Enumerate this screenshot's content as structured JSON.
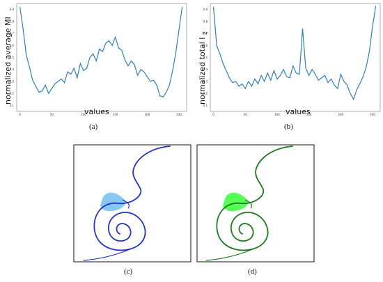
{
  "chart_data": [
    {
      "type": "line",
      "panel": "(a)",
      "xlabel": "values",
      "ylabel": "normalized average MI",
      "title": "",
      "xlim": [
        -5,
        262
      ],
      "ylim": [
        0.05,
        0.95
      ],
      "xticks": [
        0,
        50,
        100,
        150,
        200,
        250
      ],
      "yticks": [
        0.1,
        0.2,
        0.3,
        0.4,
        0.5,
        0.6,
        0.7,
        0.8,
        0.9
      ],
      "line_color": "#2f7fbf",
      "grid": false,
      "series": [
        {
          "x": [
            0,
            5,
            10,
            15,
            20,
            25,
            30,
            35,
            40,
            45,
            50,
            55,
            60,
            65,
            70,
            75,
            80,
            85,
            90,
            95,
            100,
            105,
            110,
            115,
            120,
            125,
            130,
            135,
            140,
            145,
            150,
            155,
            160,
            165,
            170,
            175,
            180,
            185,
            190,
            195,
            200,
            205,
            210,
            215,
            220,
            225,
            230,
            235,
            240,
            245,
            250,
            255
          ],
          "values": [
            0.92,
            0.74,
            0.52,
            0.42,
            0.31,
            0.26,
            0.21,
            0.22,
            0.27,
            0.2,
            0.24,
            0.28,
            0.3,
            0.32,
            0.29,
            0.38,
            0.36,
            0.41,
            0.33,
            0.45,
            0.39,
            0.41,
            0.5,
            0.53,
            0.47,
            0.57,
            0.55,
            0.62,
            0.64,
            0.6,
            0.67,
            0.58,
            0.56,
            0.48,
            0.43,
            0.47,
            0.44,
            0.35,
            0.4,
            0.38,
            0.34,
            0.3,
            0.31,
            0.27,
            0.18,
            0.17,
            0.21,
            0.27,
            0.39,
            0.54,
            0.73,
            0.92
          ]
        }
      ]
    },
    {
      "type": "line",
      "panel": "(b)",
      "xlabel": "values",
      "ylabel": "normalized total I",
      "ylabel_subscript": "2",
      "title": "",
      "xlim": [
        -5,
        262
      ],
      "ylim": [
        0.05,
        0.95
      ],
      "xticks": [
        0,
        50,
        100,
        150,
        200,
        250
      ],
      "yticks": [
        0.1,
        0.2,
        0.3,
        0.4,
        0.5,
        0.6,
        0.7,
        0.8,
        0.9
      ],
      "line_color": "#2f7fbf",
      "grid": false,
      "series": [
        {
          "x": [
            0,
            5,
            10,
            15,
            20,
            25,
            30,
            35,
            40,
            45,
            50,
            55,
            60,
            65,
            70,
            75,
            80,
            85,
            90,
            95,
            100,
            105,
            110,
            115,
            120,
            125,
            130,
            135,
            140,
            145,
            150,
            155,
            160,
            165,
            170,
            175,
            180,
            185,
            190,
            195,
            200,
            205,
            210,
            215,
            220,
            225,
            230,
            235,
            240,
            245,
            250,
            255
          ],
          "values": [
            0.92,
            0.6,
            0.53,
            0.45,
            0.39,
            0.33,
            0.29,
            0.3,
            0.26,
            0.28,
            0.24,
            0.3,
            0.26,
            0.32,
            0.28,
            0.35,
            0.3,
            0.37,
            0.31,
            0.39,
            0.32,
            0.35,
            0.4,
            0.34,
            0.33,
            0.43,
            0.37,
            0.36,
            0.74,
            0.41,
            0.35,
            0.4,
            0.36,
            0.31,
            0.33,
            0.35,
            0.29,
            0.32,
            0.27,
            0.24,
            0.36,
            0.3,
            0.27,
            0.2,
            0.15,
            0.23,
            0.28,
            0.34,
            0.42,
            0.55,
            0.76,
            0.93
          ]
        }
      ]
    }
  ],
  "figure": {
    "captions": {
      "a": "(a)",
      "b": "(b)",
      "c": "(c)",
      "d": "(d)"
    },
    "colors": {
      "blue_curve": "#2233cc",
      "blue_fill": "#7ec6f2",
      "green_curve": "#1e7a1e",
      "green_fill": "#4cff4c",
      "dark_frame": "#111111"
    }
  }
}
